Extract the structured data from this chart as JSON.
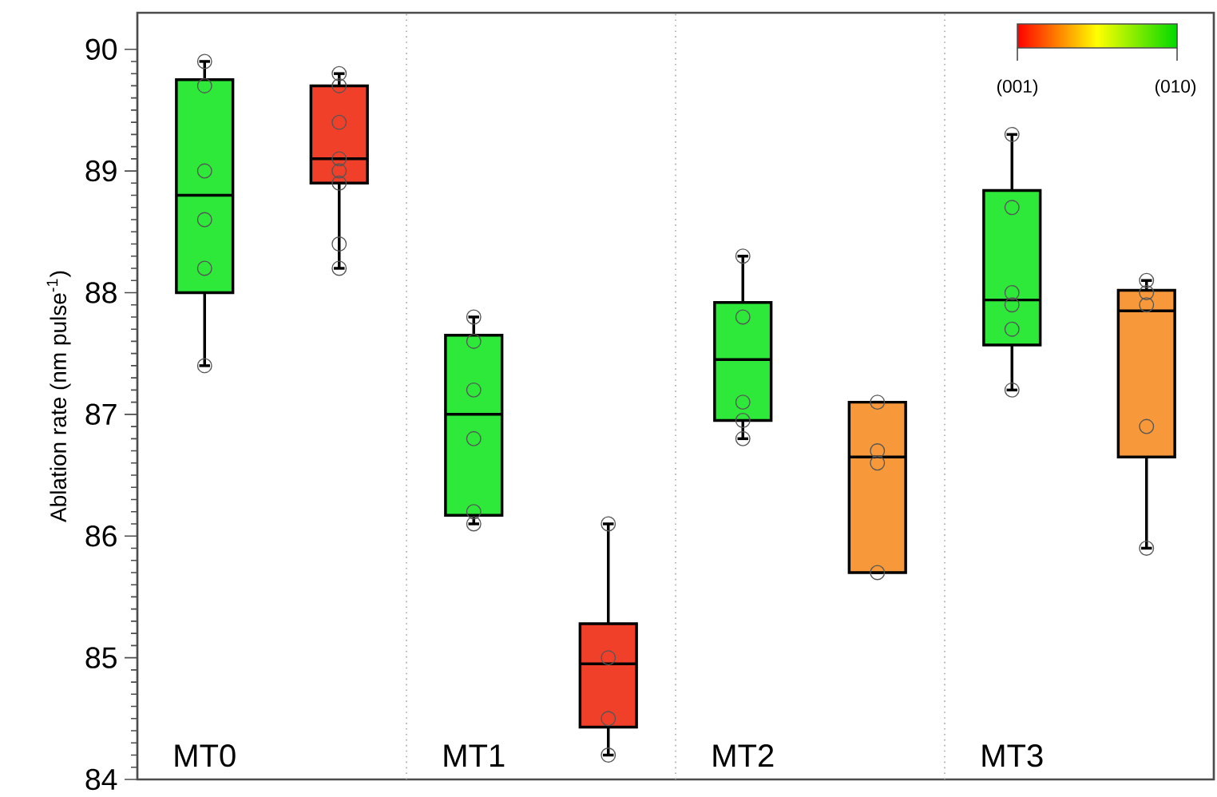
{
  "chart_data": {
    "type": "box",
    "ylabel": "Ablation rate (nm pulse$^{-1}$)",
    "categories": [
      "MT0",
      null,
      "MT1",
      null,
      "MT2",
      null,
      "MT3",
      null
    ],
    "boxes": [
      {
        "low": 87.4,
        "q1": 88.0,
        "median": 88.8,
        "q3": 89.75,
        "high": 89.9
      },
      {
        "low": 88.2,
        "q1": 88.9,
        "median": 89.1,
        "q3": 89.7,
        "high": 89.8
      },
      {
        "low": 86.1,
        "q1": 86.17,
        "median": 87.0,
        "q3": 87.65,
        "high": 87.8
      },
      {
        "low": 84.2,
        "q1": 84.43,
        "median": 84.95,
        "q3": 85.28,
        "high": 86.1
      },
      {
        "low": 86.8,
        "q1": 86.95,
        "median": 87.45,
        "q3": 87.92,
        "high": 88.3
      },
      {
        "low": 85.7,
        "q1": 85.7,
        "median": 86.65,
        "q3": 87.1,
        "high": 87.1
      },
      {
        "low": 87.2,
        "q1": 87.57,
        "median": 87.94,
        "q3": 88.84,
        "high": 89.3
      },
      {
        "low": 85.9,
        "q1": 86.65,
        "median": 87.85,
        "q3": 88.02,
        "high": 88.1
      }
    ],
    "colors": [
      "#2ee83a",
      "#f0402a",
      "#2ee83a",
      "#f0402a",
      "#2ee83a",
      "#f7993a",
      "#2ee83a",
      "#f7993a"
    ],
    "series": [
      {
        "type": "scatter",
        "color": "#555555",
        "marker": "circle",
        "values": [
          89.9,
          89.8,
          87.8,
          86.1,
          88.3,
          87.1,
          89.3,
          88.1
        ]
      },
      {
        "type": "scatter",
        "color": "#555555",
        "marker": "circle",
        "values": [
          89.7,
          89.7,
          87.6,
          85.0,
          87.8,
          86.7,
          88.7,
          88.0
        ]
      },
      {
        "type": "scatter",
        "color": "#555555",
        "marker": "circle",
        "values": [
          89.0,
          89.4,
          87.2,
          84.5,
          87.1,
          86.6,
          88.0,
          87.9
        ]
      },
      {
        "type": "scatter",
        "color": "#555555",
        "marker": "circle",
        "values": [
          88.6,
          89.1,
          86.8,
          84.2,
          86.95,
          85.7,
          87.9,
          86.9
        ]
      },
      {
        "type": "scatter",
        "color": "#555555",
        "marker": "circle",
        "values": [
          88.2,
          89.0,
          86.2,
          null,
          86.8,
          null,
          87.7,
          85.9
        ]
      },
      {
        "type": "scatter",
        "color": "#555555",
        "marker": "circle",
        "values": [
          87.4,
          88.9,
          86.1,
          null,
          null,
          null,
          87.2,
          null
        ]
      },
      {
        "type": "scatter",
        "color": "#555555",
        "marker": "circle",
        "values": [
          null,
          88.4,
          null,
          null,
          null,
          null,
          null,
          null
        ]
      },
      {
        "type": "scatter",
        "color": "#555555",
        "marker": "circle",
        "values": [
          null,
          88.2,
          null,
          null,
          null,
          null,
          null,
          null
        ]
      }
    ],
    "ylim": [
      84,
      90.3
    ],
    "yticks": [
      84,
      85,
      86,
      87,
      88,
      89,
      90
    ],
    "annotations": [
      "(001)",
      "(010)"
    ]
  }
}
